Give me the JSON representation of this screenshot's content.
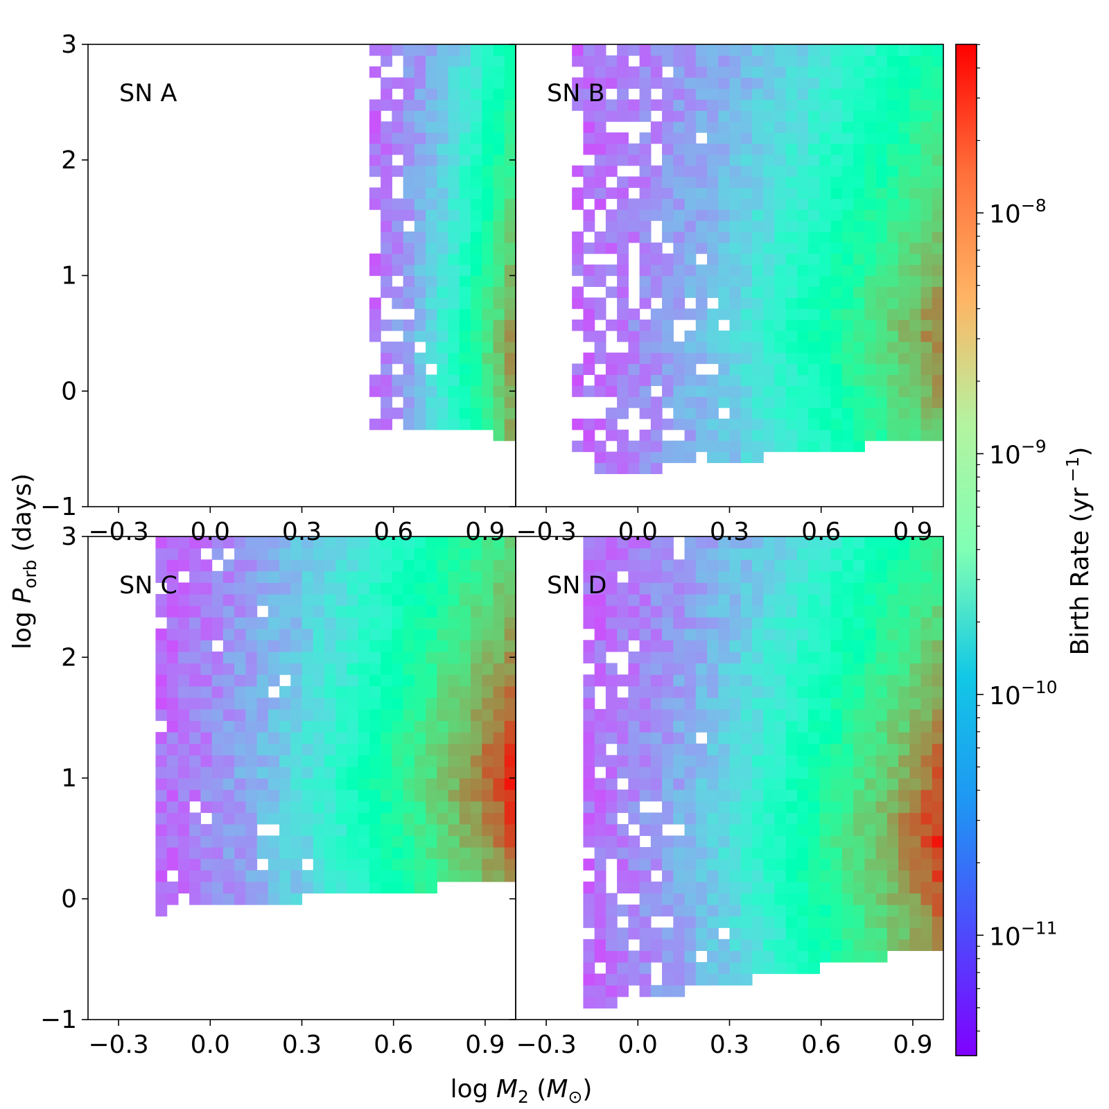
{
  "figure": {
    "ylabel_prefix": "log ",
    "ylabel_var": "P",
    "ylabel_sub": "orb",
    "ylabel_suffix": " (days)",
    "xlabel_prefix": "log ",
    "xlabel_var": "M",
    "xlabel_sub": "2",
    "xlabel_mid": " (",
    "xlabel_unit_var": "M",
    "xlabel_unit_sub": "⊙",
    "xlabel_suffix": ")"
  },
  "colorbar": {
    "label": "Birth Rate (yr",
    "label_exp": " −1",
    "label_end": ")",
    "range_log10": [
      -11.5,
      -7.3
    ],
    "tick_base": "10",
    "ticks": [
      {
        "log10": -8,
        "exp": "−8"
      },
      {
        "log10": -9,
        "exp": "−9"
      },
      {
        "log10": -10,
        "exp": "−10"
      },
      {
        "log10": -11,
        "exp": "−11"
      }
    ]
  },
  "chart_data": [
    {
      "type": "heatmap",
      "title": "SN A",
      "xlim": [
        -0.4,
        1.0
      ],
      "ylim": [
        -1,
        3
      ],
      "xticks": [
        -0.3,
        0.0,
        0.3,
        0.6,
        0.9
      ],
      "xtick_labels": [
        "−0.3",
        "0.0",
        "0.3",
        "0.6",
        "0.9"
      ],
      "yticks": [
        -1,
        0,
        1,
        2,
        3
      ],
      "ytick_labels": [
        "−1",
        "0",
        "1",
        "2",
        "3"
      ],
      "region": {
        "x_start": 0.52,
        "y_bottom_at_xstart": -0.3,
        "y_bottom_at_xmax": -0.4,
        "y_top": 3.0
      },
      "peak": {
        "x": 0.98,
        "y": 0.3,
        "log10_rate": -8.1
      },
      "sparsity": 0.28
    },
    {
      "type": "heatmap",
      "title": "SN B",
      "xlim": [
        -0.4,
        1.0
      ],
      "ylim": [
        -1,
        3
      ],
      "xticks": [
        -0.3,
        0.0,
        0.3,
        0.6,
        0.9
      ],
      "xtick_labels": [
        "−0.3",
        "0.0",
        "0.3",
        "0.6",
        "0.9"
      ],
      "yticks": [
        -1,
        0,
        1,
        2,
        3
      ],
      "ytick_labels": [
        "−1",
        "0",
        "1",
        "2",
        "3"
      ],
      "region": {
        "x_start": -0.2,
        "y_bottom_at_xstart": -0.75,
        "y_bottom_at_xmax": -0.4,
        "y_top": 3.0
      },
      "peak": {
        "x": 0.98,
        "y": 0.5,
        "log10_rate": -8.0
      },
      "sparsity": 0.35
    },
    {
      "type": "heatmap",
      "title": "SN C",
      "xlim": [
        -0.4,
        1.0
      ],
      "ylim": [
        -1,
        3
      ],
      "xticks": [
        -0.3,
        0.0,
        0.3,
        0.6,
        0.9
      ],
      "xtick_labels": [
        "−0.3",
        "0.0",
        "0.3",
        "0.6",
        "0.9"
      ],
      "yticks": [
        -1,
        0,
        1,
        2,
        3
      ],
      "ytick_labels": [
        "−1",
        "0",
        "1",
        "2",
        "3"
      ],
      "region": {
        "x_start": -0.18,
        "y_bottom_at_xstart": -0.1,
        "y_bottom_at_xmax": 0.15,
        "y_top": 3.0
      },
      "peak": {
        "x": 0.98,
        "y": 1.0,
        "log10_rate": -7.5
      },
      "sparsity": 0.12
    },
    {
      "type": "heatmap",
      "title": "SN D",
      "xlim": [
        -0.4,
        1.0
      ],
      "ylim": [
        -1,
        3
      ],
      "xticks": [
        -0.3,
        0.0,
        0.3,
        0.6,
        0.9
      ],
      "xtick_labels": [
        "−0.3",
        "0.0",
        "0.3",
        "0.6",
        "0.9"
      ],
      "yticks": [
        -1,
        0,
        1,
        2,
        3
      ],
      "ytick_labels": [
        "−1",
        "0",
        "1",
        "2",
        "3"
      ],
      "region": {
        "x_start": -0.18,
        "y_bottom_at_xstart": -0.9,
        "y_bottom_at_xmax": -0.4,
        "y_top": 3.0
      },
      "peak": {
        "x": 0.98,
        "y": 0.5,
        "log10_rate": -7.5
      },
      "sparsity": 0.1
    }
  ]
}
